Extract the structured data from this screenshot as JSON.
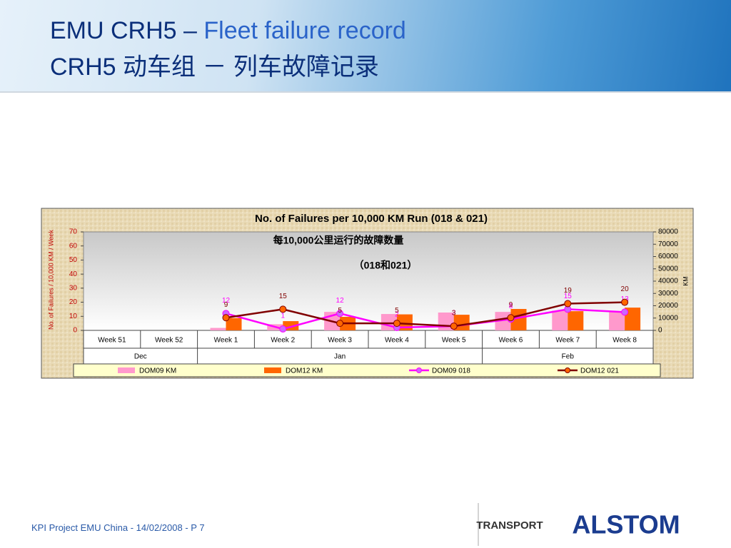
{
  "header": {
    "title_prefix": "EMU CRH5 – ",
    "title_highlight": "Fleet failure record",
    "subtitle": "CRH5 动车组 － 列车故障记录"
  },
  "chart_data": {
    "type": "combo",
    "title": "No. of Failures per 10,000 KM Run (018 & 021)",
    "subtitle": "每10,000公里运行的故障数量",
    "subtitle2": "（018和021）",
    "y_label": "No. of Failures / 10,000 KM / Week",
    "y2_label": "KM",
    "categories": [
      "Week 51",
      "Week 52",
      "Week 1",
      "Week 2",
      "Week 3",
      "Week 4",
      "Week 5",
      "Week 6",
      "Week 7",
      "Week 8"
    ],
    "x_groups": [
      "Dec",
      "Jan",
      "Feb"
    ],
    "ylim": [
      0,
      70
    ],
    "yticks": [
      0,
      10,
      20,
      30,
      40,
      50,
      60,
      70
    ],
    "y2lim": [
      0,
      80000
    ],
    "y2ticks": [
      0,
      10000,
      20000,
      30000,
      40000,
      50000,
      60000,
      70000,
      80000
    ],
    "series": [
      {
        "name": "DOM09 KM",
        "type": "bar",
        "axis": "y2",
        "color": "#ff99cc",
        "values": [
          null,
          null,
          2000,
          5000,
          15000,
          13300,
          14500,
          15000,
          16000,
          15000
        ]
      },
      {
        "name": "DOM12 KM",
        "type": "bar",
        "axis": "y2",
        "color": "#ff6600",
        "values": [
          null,
          null,
          10000,
          7500,
          11000,
          13000,
          12700,
          17400,
          15600,
          18500
        ]
      },
      {
        "name": "DOM09 018",
        "type": "line",
        "color": "#ff00ff",
        "marker": "#cc66ff",
        "values": [
          null,
          null,
          12,
          1,
          12,
          2,
          3,
          8,
          15,
          13
        ]
      },
      {
        "name": "DOM12 021",
        "type": "line",
        "color": "#800000",
        "marker": "#ff6600",
        "values": [
          null,
          null,
          9,
          15,
          5,
          5,
          3,
          9,
          19,
          20
        ]
      }
    ]
  },
  "footer": {
    "text": "KPI Project EMU China - 14/02/2008 - P 7",
    "division": "TRANSPORT",
    "brand": "ALSTOM"
  }
}
